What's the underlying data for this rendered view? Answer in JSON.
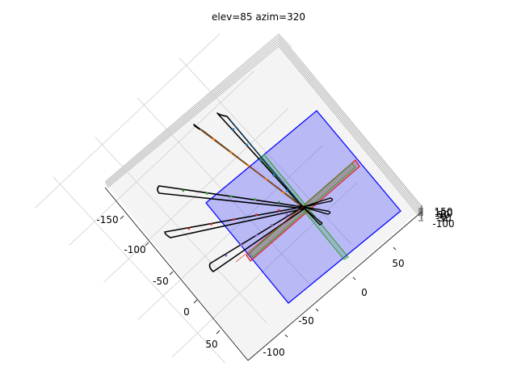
{
  "chart_data": {
    "type": "3d-line",
    "title": "elev=85 azim=320",
    "view": {
      "elev": 85,
      "azim": 320
    },
    "xlim": [
      -160,
      90
    ],
    "ylim": [
      -130,
      90
    ],
    "zlim": [
      -100,
      150
    ],
    "x_ticks": [
      "-150",
      "-100",
      "-50",
      "0",
      "50"
    ],
    "y_ticks": [
      "-100",
      "-50",
      "0",
      "50"
    ],
    "z_ticks": [
      "150",
      "100",
      "50",
      "0",
      "-50",
      "-100"
    ],
    "grid": true,
    "plane": {
      "color": "#0000ff",
      "fill_opacity": 0.24
    },
    "colors": {
      "curve": "#000000",
      "markers": [
        "#1f77b4",
        "#ff7f0e",
        "#2ca02c",
        "#d62728",
        "#9467bd"
      ],
      "rect_green": "#2ca02c",
      "rect_red": "#d62728"
    },
    "loops_tip_xy": [
      [
        -135,
        -25
      ],
      [
        -125,
        -50
      ],
      [
        -120,
        -85
      ],
      [
        -95,
        -105
      ],
      [
        -62,
        -110
      ]
    ],
    "loop_center_xy": [
      -5,
      0
    ]
  }
}
